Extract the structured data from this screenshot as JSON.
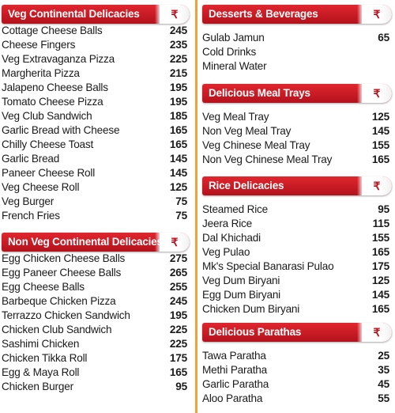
{
  "currency_symbol": "₹",
  "colors": {
    "header_red": "#c8161f",
    "divider_orange": "#f0a23a"
  },
  "sections": [
    {
      "title": "Veg Continental Delicacies",
      "items": [
        {
          "name": "Cottage Cheese Balls",
          "price": "245"
        },
        {
          "name": "Cheese Fingers",
          "price": "235"
        },
        {
          "name": "Veg Extravaganza Pizza",
          "price": "225"
        },
        {
          "name": "Margherita Pizza",
          "price": "215"
        },
        {
          "name": "Jalapeno Cheese Balls",
          "price": "195"
        },
        {
          "name": "Tomato Cheese Pizza",
          "price": "195"
        },
        {
          "name": "Veg Club Sandwich",
          "price": "185"
        },
        {
          "name": "Garlic Bread with Cheese",
          "price": "165"
        },
        {
          "name": "Chilly Cheese Toast",
          "price": "165"
        },
        {
          "name": "Garlic Bread",
          "price": "145"
        },
        {
          "name": "Paneer Cheese Roll",
          "price": "145"
        },
        {
          "name": "Veg Cheese Roll",
          "price": "125"
        },
        {
          "name": "Veg Burger",
          "price": "75"
        },
        {
          "name": "French Fries",
          "price": "75"
        }
      ]
    },
    {
      "title": "Non Veg Continental Delicacies",
      "items": [
        {
          "name": "Egg Chicken Cheese Balls",
          "price": "275"
        },
        {
          "name": "Egg Paneer Cheese Balls",
          "price": "265"
        },
        {
          "name": "Egg Cheese Balls",
          "price": "255"
        },
        {
          "name": "Barbeque Chicken Pizza",
          "price": "245"
        },
        {
          "name": "Terrazzo Chicken Sandwich",
          "price": "195"
        },
        {
          "name": "Chicken Club Sandwich",
          "price": "225"
        },
        {
          "name": "Sashimi Chicken",
          "price": "225"
        },
        {
          "name": "Chicken Tikka Roll",
          "price": "175"
        },
        {
          "name": "Egg & Maya Roll",
          "price": "165"
        },
        {
          "name": "Chicken Burger",
          "price": "95"
        }
      ]
    },
    {
      "title": "Desserts & Beverages",
      "items": [
        {
          "name": "Gulab Jamun",
          "price": "65"
        },
        {
          "name": "Cold Drinks",
          "price": ""
        },
        {
          "name": "Mineral Water",
          "price": ""
        }
      ]
    },
    {
      "title": "Delicious Meal Trays",
      "items": [
        {
          "name": "Veg Meal Tray",
          "price": "125"
        },
        {
          "name": "Non Veg Meal Tray",
          "price": "145"
        },
        {
          "name": "Veg Chinese Meal Tray",
          "price": "155"
        },
        {
          "name": "Non Veg Chinese Meal Tray",
          "price": "165"
        }
      ]
    },
    {
      "title": "Rice Delicacies",
      "items": [
        {
          "name": "Steamed Rice",
          "price": "95"
        },
        {
          "name": "Jeera Rice",
          "price": "115"
        },
        {
          "name": "Dal Khichadi",
          "price": "155"
        },
        {
          "name": "Veg Pulao",
          "price": "165"
        },
        {
          "name": "Mk's Special Banarasi Pulao",
          "price": "175"
        },
        {
          "name": "Veg Dum Biryani",
          "price": "125"
        },
        {
          "name": "Egg Dum Biryani",
          "price": "145"
        },
        {
          "name": "Chicken Dum Biryani",
          "price": "165"
        }
      ]
    },
    {
      "title": "Delicious Parathas",
      "items": [
        {
          "name": "Tawa Paratha",
          "price": "25"
        },
        {
          "name": "Methi Paratha",
          "price": "35"
        },
        {
          "name": "Garlic Paratha",
          "price": "45"
        },
        {
          "name": "Aloo Paratha",
          "price": "55"
        }
      ]
    }
  ]
}
